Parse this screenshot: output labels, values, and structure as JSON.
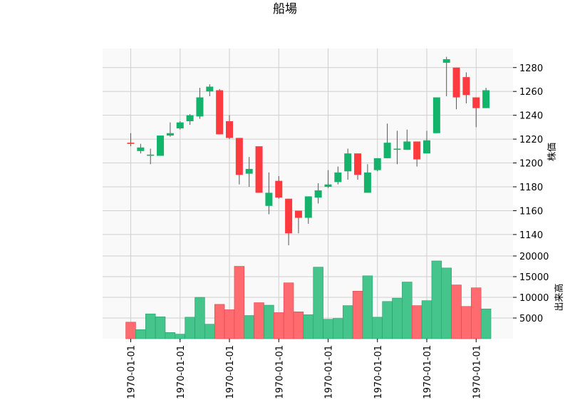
{
  "chart_data": {
    "type": "candlestick",
    "title": "船場",
    "price": {
      "ylabel": "株価",
      "ylim": [
        1122,
        1296
      ],
      "yticks": [
        1140,
        1160,
        1180,
        1200,
        1220,
        1240,
        1260,
        1280
      ],
      "colors": {
        "up": "#13b36b",
        "down": "#ff3a3e",
        "wick": "#555555"
      },
      "candles": [
        {
          "o": 1217,
          "h": 1225,
          "l": 1214,
          "c": 1216
        },
        {
          "o": 1210,
          "h": 1216,
          "l": 1208,
          "c": 1213
        },
        {
          "o": 1207,
          "h": 1212,
          "l": 1199,
          "c": 1207
        },
        {
          "o": 1206,
          "h": 1223,
          "l": 1206,
          "c": 1223
        },
        {
          "o": 1223,
          "h": 1234,
          "l": 1222,
          "c": 1225
        },
        {
          "o": 1229,
          "h": 1235,
          "l": 1228,
          "c": 1234
        },
        {
          "o": 1235,
          "h": 1241,
          "l": 1232,
          "c": 1240
        },
        {
          "o": 1239,
          "h": 1263,
          "l": 1237,
          "c": 1255
        },
        {
          "o": 1260,
          "h": 1266,
          "l": 1256,
          "c": 1264
        },
        {
          "o": 1261,
          "h": 1262,
          "l": 1224,
          "c": 1224
        },
        {
          "o": 1235,
          "h": 1240,
          "l": 1220,
          "c": 1221
        },
        {
          "o": 1221,
          "h": 1221,
          "l": 1182,
          "c": 1190
        },
        {
          "o": 1191,
          "h": 1205,
          "l": 1180,
          "c": 1195
        },
        {
          "o": 1214,
          "h": 1214,
          "l": 1175,
          "c": 1175
        },
        {
          "o": 1164,
          "h": 1192,
          "l": 1157,
          "c": 1175
        },
        {
          "o": 1185,
          "h": 1189,
          "l": 1170,
          "c": 1171
        },
        {
          "o": 1170,
          "h": 1170,
          "l": 1131,
          "c": 1141
        },
        {
          "o": 1160,
          "h": 1160,
          "l": 1141,
          "c": 1154
        },
        {
          "o": 1154,
          "h": 1172,
          "l": 1149,
          "c": 1172
        },
        {
          "o": 1171,
          "h": 1183,
          "l": 1166,
          "c": 1177
        },
        {
          "o": 1180,
          "h": 1194,
          "l": 1179,
          "c": 1182
        },
        {
          "o": 1184,
          "h": 1197,
          "l": 1182,
          "c": 1192
        },
        {
          "o": 1193,
          "h": 1212,
          "l": 1186,
          "c": 1208
        },
        {
          "o": 1208,
          "h": 1208,
          "l": 1186,
          "c": 1190
        },
        {
          "o": 1175,
          "h": 1199,
          "l": 1175,
          "c": 1192
        },
        {
          "o": 1194,
          "h": 1204,
          "l": 1193,
          "c": 1204
        },
        {
          "o": 1204,
          "h": 1233,
          "l": 1204,
          "c": 1217
        },
        {
          "o": 1212,
          "h": 1227,
          "l": 1199,
          "c": 1212
        },
        {
          "o": 1211,
          "h": 1228,
          "l": 1211,
          "c": 1218
        },
        {
          "o": 1218,
          "h": 1218,
          "l": 1197,
          "c": 1203
        },
        {
          "o": 1208,
          "h": 1227,
          "l": 1208,
          "c": 1219
        },
        {
          "o": 1225,
          "h": 1255,
          "l": 1225,
          "c": 1255
        },
        {
          "o": 1284,
          "h": 1289,
          "l": 1256,
          "c": 1287
        },
        {
          "o": 1280,
          "h": 1280,
          "l": 1245,
          "c": 1255
        },
        {
          "o": 1272,
          "h": 1276,
          "l": 1250,
          "c": 1257
        },
        {
          "o": 1255,
          "h": 1255,
          "l": 1230,
          "c": 1246
        },
        {
          "o": 1246,
          "h": 1263,
          "l": 1246,
          "c": 1261
        }
      ]
    },
    "volume": {
      "ylabel": "出来高",
      "ylim": [
        0,
        20000
      ],
      "yticks": [
        5000,
        10000,
        15000,
        20000
      ],
      "colors": {
        "up": "#45c48c",
        "down": "#ff6b6e",
        "up_edge": "#2a9e6a",
        "down_edge": "#e04448"
      },
      "values": [
        4000,
        2200,
        6000,
        5300,
        1500,
        1100,
        5200,
        10000,
        3500,
        8300,
        7000,
        17500,
        5600,
        8700,
        8100,
        6300,
        13500,
        6500,
        5800,
        17300,
        4700,
        4900,
        8000,
        11500,
        15200,
        5200,
        9000,
        9800,
        13700,
        8000,
        9200,
        18800,
        17100,
        13000,
        7800,
        12300,
        7200
      ]
    },
    "xaxis": {
      "tick_labels": [
        "1970-01-01",
        "1970-01-01",
        "1970-01-01",
        "1970-01-01",
        "1970-01-01",
        "1970-01-01",
        "1970-01-01",
        "1970-01-01"
      ],
      "tick_every": 5
    },
    "grid": true
  }
}
